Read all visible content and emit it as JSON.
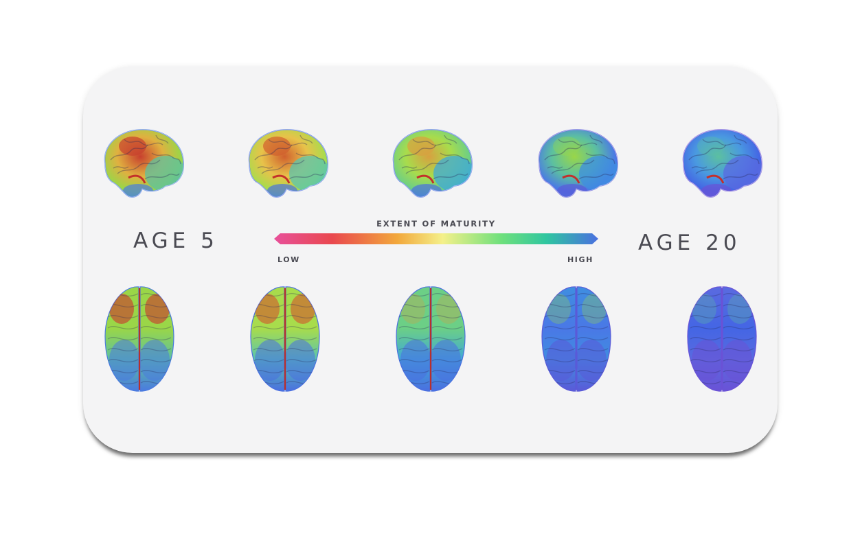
{
  "labels": {
    "age_start": "AGE 5",
    "age_end": "AGE 20",
    "scale_title": "EXTENT OF MATURITY",
    "scale_low": "LOW",
    "scale_high": "HIGH"
  },
  "colors": {
    "card_background": "#f4f4f5",
    "text": "#4a4a52",
    "scale_gradient": [
      "#e8509a",
      "#e9484e",
      "#f2a83c",
      "#f4f08a",
      "#6fe07c",
      "#2fc6a0",
      "#4a6fe0"
    ]
  },
  "brains": {
    "side_view_maturity": [
      0.12,
      0.28,
      0.52,
      0.75,
      0.9
    ],
    "top_view_maturity": [
      0.15,
      0.32,
      0.55,
      0.78,
      0.92
    ]
  }
}
